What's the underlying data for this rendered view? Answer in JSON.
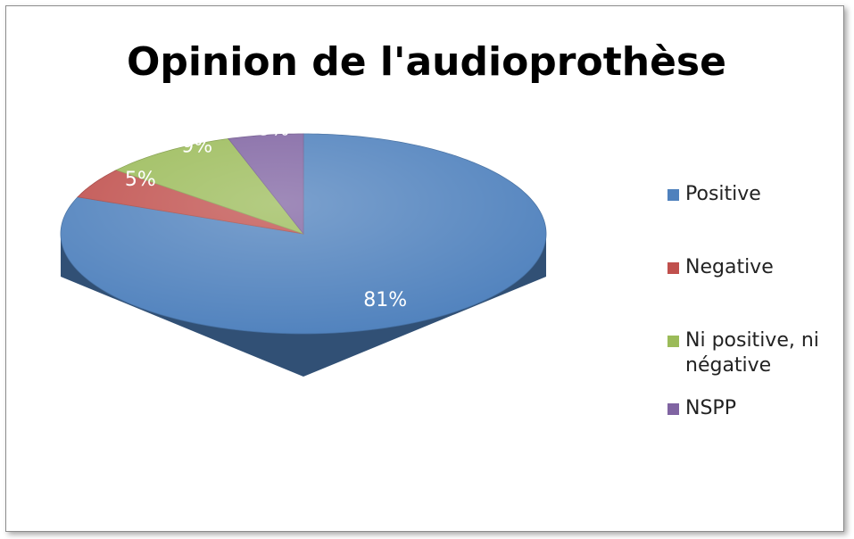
{
  "chart_data": {
    "type": "pie",
    "title": "Opinion de l'audioprothèse",
    "categories": [
      "Positive",
      "Negative",
      "Ni positive, ni négative",
      "NSPP"
    ],
    "values": [
      81,
      5,
      9,
      5
    ],
    "value_labels": [
      "81%",
      "5%",
      "9%",
      "5%"
    ],
    "colors": [
      "#4f81bd",
      "#c0504d",
      "#9bbb59",
      "#8064a2"
    ],
    "legend": "right"
  }
}
